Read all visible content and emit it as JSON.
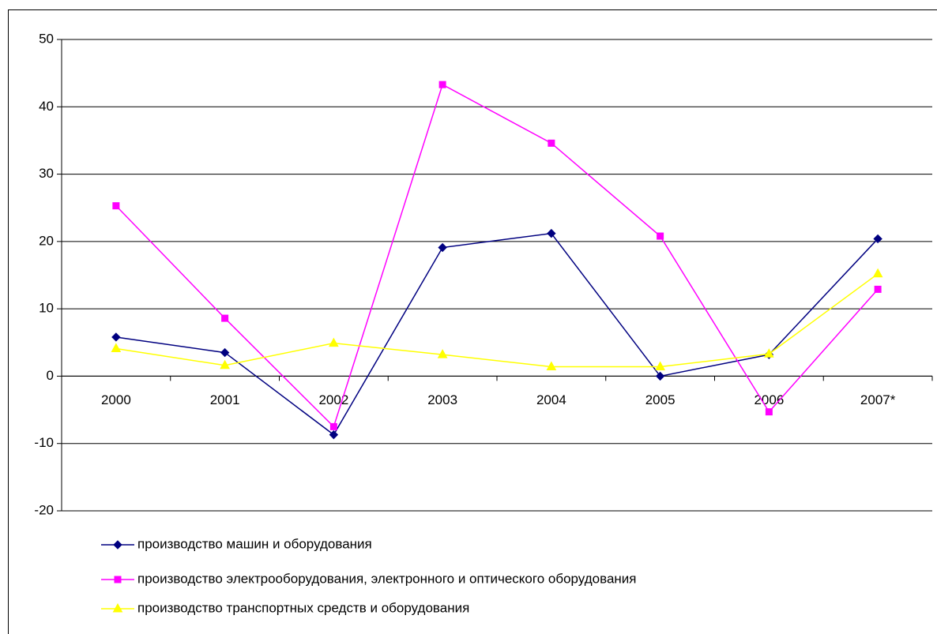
{
  "chart_data": {
    "type": "line",
    "categories": [
      "2000",
      "2001",
      "2002",
      "2003",
      "2004",
      "2005",
      "2006",
      "2007*"
    ],
    "series": [
      {
        "name": "производство машин и оборудования",
        "color": "#000080",
        "marker": "diamond",
        "values": [
          5.8,
          3.5,
          -8.7,
          19.1,
          21.2,
          0,
          3.2,
          20.4
        ]
      },
      {
        "name": "производство электрооборудования, электронного и оптического оборудования",
        "color": "#ff00ff",
        "marker": "square",
        "values": [
          25.3,
          8.6,
          -7.5,
          43.3,
          34.6,
          20.8,
          -5.3,
          12.9
        ]
      },
      {
        "name": "производство транспортных средств и оборудования",
        "color": "#ffff00",
        "marker": "triangle",
        "values": [
          4.1,
          1.6,
          4.9,
          3.2,
          1.4,
          1.4,
          3.3,
          15.2
        ]
      }
    ],
    "ylim": [
      -20,
      50
    ],
    "yticks": [
      -20,
      -10,
      0,
      10,
      20,
      30,
      40,
      50
    ],
    "grid": true,
    "legend": "bottom"
  }
}
